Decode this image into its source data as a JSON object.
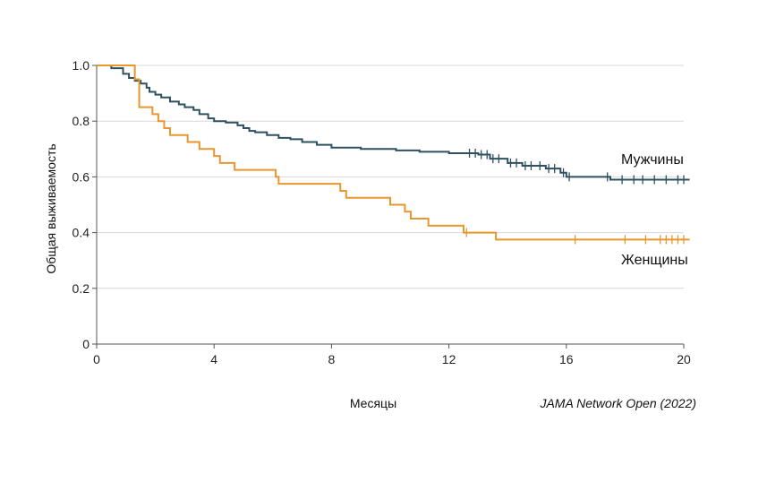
{
  "chart_data": {
    "type": "line",
    "step": true,
    "title": "",
    "xlabel": "Месяцы",
    "ylabel": "Общая выживаемость",
    "xlim": [
      0,
      20
    ],
    "ylim": [
      0,
      1
    ],
    "xticks": [
      0,
      4,
      8,
      12,
      16,
      20
    ],
    "yticks": [
      0,
      0.2,
      0.4,
      0.6,
      0.8,
      1.0
    ],
    "xtick_labels": [
      "0",
      "4",
      "8",
      "12",
      "16",
      "20"
    ],
    "ytick_labels": [
      "0",
      "0.2",
      "0.4",
      "0.6",
      "0.8",
      "1.0"
    ],
    "grid": "horizontal",
    "source": "JAMA Network Open (2022)",
    "series": [
      {
        "name": "Мужчины",
        "color": "#2e5060",
        "x": [
          0,
          0.5,
          0.9,
          1.1,
          1.3,
          1.5,
          1.7,
          1.8,
          2.0,
          2.2,
          2.5,
          2.8,
          3.0,
          3.3,
          3.5,
          3.8,
          4.0,
          4.4,
          4.8,
          5.0,
          5.2,
          5.4,
          5.8,
          6.2,
          6.6,
          7.0,
          7.5,
          8.0,
          9.0,
          10.2,
          11.0,
          12.0,
          13.0,
          13.4,
          14.0,
          14.5,
          15.3,
          15.8,
          16.0,
          17.0,
          17.5,
          18.0,
          20.2
        ],
        "y": [
          1.0,
          0.99,
          0.97,
          0.955,
          0.945,
          0.935,
          0.92,
          0.905,
          0.895,
          0.885,
          0.87,
          0.86,
          0.85,
          0.84,
          0.825,
          0.81,
          0.8,
          0.795,
          0.785,
          0.775,
          0.765,
          0.76,
          0.75,
          0.74,
          0.735,
          0.725,
          0.715,
          0.705,
          0.7,
          0.695,
          0.69,
          0.685,
          0.68,
          0.665,
          0.65,
          0.64,
          0.63,
          0.615,
          0.6,
          0.6,
          0.59,
          0.59,
          0.59
        ],
        "censored": [
          12.7,
          12.9,
          13.1,
          13.3,
          13.5,
          13.7,
          14.1,
          14.3,
          14.6,
          14.8,
          15.1,
          15.4,
          15.6,
          15.9,
          16.1,
          17.4,
          17.9,
          18.3,
          18.6,
          19.0,
          19.4,
          19.8,
          20.0
        ]
      },
      {
        "name": "Женщины",
        "color": "#e8962e",
        "x": [
          0,
          1.3,
          1.45,
          1.9,
          2.1,
          2.3,
          2.5,
          3.1,
          3.5,
          4.0,
          4.2,
          4.7,
          6.1,
          6.2,
          8.3,
          8.5,
          10.0,
          10.5,
          10.7,
          11.3,
          12.5,
          13.6,
          20.2
        ],
        "y": [
          1.0,
          0.95,
          0.85,
          0.825,
          0.8,
          0.775,
          0.75,
          0.725,
          0.7,
          0.675,
          0.65,
          0.625,
          0.6,
          0.575,
          0.55,
          0.525,
          0.5,
          0.475,
          0.45,
          0.425,
          0.4,
          0.375,
          0.375
        ],
        "censored": [
          12.6,
          16.3,
          18.0,
          18.7,
          19.2,
          19.4,
          19.6,
          19.8,
          20.0
        ]
      }
    ],
    "series_labels": [
      "Мужчины",
      "Женщины"
    ]
  }
}
